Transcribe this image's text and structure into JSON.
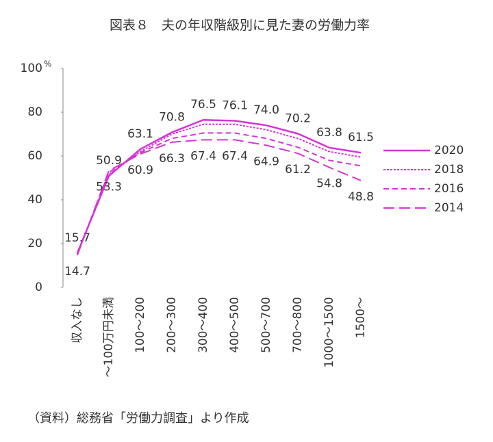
{
  "chart_data": {
    "type": "line",
    "title": "図表８　夫の年収階級別に見た妻の労働力率",
    "y_unit": "%",
    "source": "（資料）総務省「労働力調査」より作成",
    "categories": [
      "収入なし",
      "〜100万円未満",
      "100〜200",
      "200〜300",
      "300〜400",
      "400〜500",
      "500〜700",
      "700〜800",
      "1000〜1500",
      "1500〜"
    ],
    "series": [
      {
        "name": "2020",
        "color": "#d633d6",
        "line_style": "solid",
        "label_position": "above",
        "values": [
          15.7,
          50.9,
          63.1,
          70.8,
          76.5,
          76.1,
          74.0,
          70.2,
          63.8,
          61.5
        ],
        "value_labels": [
          "15.7",
          "50.9",
          "63.1",
          "70.8",
          "76.5",
          "76.1",
          "74.0",
          "70.2",
          "63.8",
          "61.5"
        ]
      },
      {
        "name": "2018",
        "color": "#d633d6",
        "line_style": "dotted",
        "values": [
          15.5,
          51.5,
          62,
          70,
          74.5,
          74.5,
          72,
          68,
          62,
          59.5
        ]
      },
      {
        "name": "2016",
        "color": "#d633d6",
        "line_style": "dashed",
        "values": [
          15.2,
          52.5,
          61.5,
          68,
          70.5,
          70.5,
          68,
          64,
          58,
          55.5
        ]
      },
      {
        "name": "2014",
        "color": "#d633d6",
        "line_style": "longdash",
        "label_position": "below",
        "values": [
          14.7,
          53.3,
          60.9,
          66.3,
          67.4,
          67.4,
          64.9,
          61.2,
          54.8,
          48.8
        ],
        "value_labels": [
          "14.7",
          "53.3",
          "60.9",
          "66.3",
          "67.4",
          "67.4",
          "64.9",
          "61.2",
          "54.8",
          "48.8"
        ]
      }
    ],
    "ylim": [
      0,
      100
    ],
    "yticks": [
      0,
      20,
      40,
      60,
      80,
      100
    ],
    "legend": "right"
  }
}
